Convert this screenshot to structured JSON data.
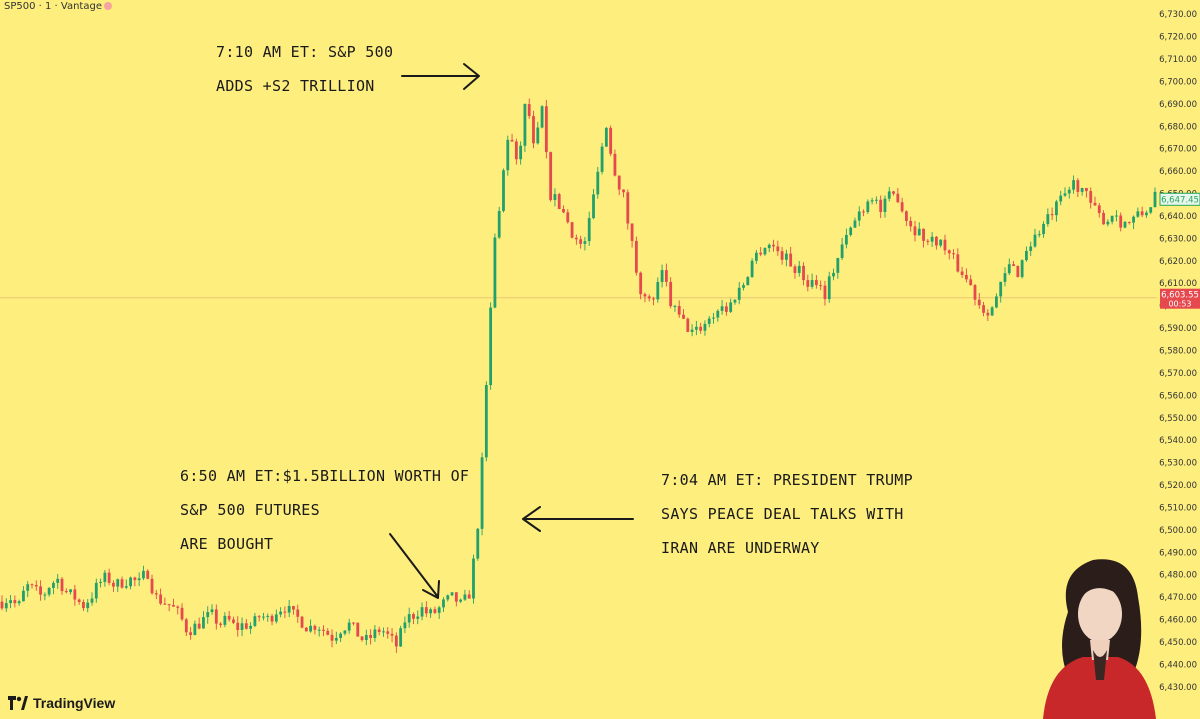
{
  "header": {
    "symbol_label": "SP500 · 1 · Vantage"
  },
  "colors": {
    "background": "#fdee7e",
    "up": "#22a06b",
    "down": "#e5484d",
    "price_tag": "#e5484d",
    "last_tag": "#26a65b"
  },
  "annotations": [
    {
      "id": "annotation-top",
      "lines": [
        "7:10 AM ET: S&P 500",
        "ADDS +S2 TRILLION"
      ]
    },
    {
      "id": "annotation-left",
      "lines": [
        "6:50 AM ET:$1.5BILLION WORTH OF",
        "S&P 500 FUTURES",
        "ARE BOUGHT"
      ]
    },
    {
      "id": "annotation-right",
      "lines": [
        "7:04 AM ET: PRESIDENT TRUMP",
        "SAYS PEACE DEAL TALKS WITH",
        "IRAN ARE UNDERWAY"
      ]
    }
  ],
  "brand": {
    "name": "TradingView",
    "icon": "tradingview-logo-icon"
  },
  "avatar": {
    "icon": "avatar-illustration-icon"
  },
  "chart_data": {
    "type": "candlestick",
    "interval": "1",
    "y_axis_side": "right",
    "ylim": [
      6425,
      6735
    ],
    "y_ticks": [
      "6,430.00",
      "6,440.00",
      "6,450.00",
      "6,460.00",
      "6,470.00",
      "6,480.00",
      "6,490.00",
      "6,500.00",
      "6,510.00",
      "6,520.00",
      "6,530.00",
      "6,540.00",
      "6,550.00",
      "6,560.00",
      "6,570.00",
      "6,580.00",
      "6,590.00",
      "6,600.00",
      "6,610.00",
      "6,620.00",
      "6,630.00",
      "6,640.00",
      "6,650.00",
      "6,660.00",
      "6,670.00",
      "6,680.00",
      "6,690.00",
      "6,700.00",
      "6,710.00",
      "6,720.00",
      "6,730.00"
    ],
    "current_price": {
      "value": 6603.55,
      "label": "6,603.55",
      "countdown": "00:53"
    },
    "last_price": {
      "value": 6647.45,
      "label": "6,647.45"
    },
    "price_path": [
      6468,
      6470,
      6465,
      6475,
      6473,
      6470,
      6476,
      6478,
      6472,
      6470,
      6466,
      6470,
      6476,
      6479,
      6475,
      6477,
      6478,
      6476,
      6482,
      6470,
      6468,
      6466,
      6462,
      6455,
      6457,
      6460,
      6462,
      6458,
      6460,
      6456,
      6458,
      6457,
      6462,
      6460,
      6464,
      6466,
      6462,
      6460,
      6456,
      6458,
      6455,
      6452,
      6456,
      6458,
      6454,
      6450,
      6453,
      6456,
      6452,
      6448,
      6460,
      6462,
      6465,
      6462,
      6464,
      6468,
      6470,
      6466,
      6472,
      6500,
      6560,
      6625,
      6655,
      6680,
      6660,
      6695,
      6668,
      6688,
      6650,
      6645,
      6640,
      6630,
      6625,
      6640,
      6665,
      6680,
      6660,
      6650,
      6630,
      6610,
      6600,
      6605,
      6615,
      6600,
      6595,
      6590,
      6588,
      6592,
      6595,
      6600,
      6598,
      6605,
      6610,
      6620,
      6625,
      6628,
      6625,
      6622,
      6618,
      6615,
      6610,
      6612,
      6605,
      6615,
      6625,
      6632,
      6640,
      6645,
      6650,
      6642,
      6648,
      6650,
      6640,
      6635,
      6632,
      6628,
      6630,
      6625,
      6620,
      6615,
      6610,
      6602,
      6598,
      6600,
      6610,
      6618,
      6615,
      6625,
      6630,
      6635,
      6640,
      6645,
      6650,
      6655,
      6652,
      6645,
      6640,
      6638,
      6642,
      6636,
      6638,
      6640,
      6642,
      6650
    ]
  }
}
